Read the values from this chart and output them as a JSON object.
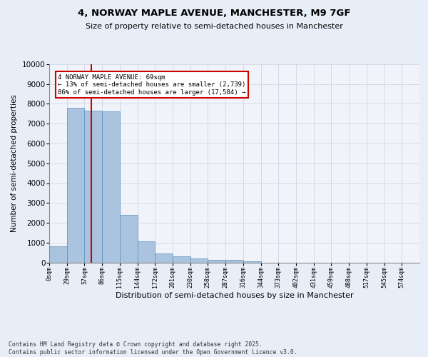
{
  "title1": "4, NORWAY MAPLE AVENUE, MANCHESTER, M9 7GF",
  "title2": "Size of property relative to semi-detached houses in Manchester",
  "xlabel": "Distribution of semi-detached houses by size in Manchester",
  "ylabel": "Number of semi-detached properties",
  "bin_labels": [
    "0sqm",
    "29sqm",
    "57sqm",
    "86sqm",
    "115sqm",
    "144sqm",
    "172sqm",
    "201sqm",
    "230sqm",
    "258sqm",
    "287sqm",
    "316sqm",
    "344sqm",
    "373sqm",
    "402sqm",
    "431sqm",
    "459sqm",
    "488sqm",
    "517sqm",
    "545sqm",
    "574sqm"
  ],
  "bar_values": [
    800,
    7800,
    7650,
    7620,
    2380,
    1060,
    460,
    300,
    185,
    120,
    120,
    60,
    0,
    0,
    0,
    0,
    0,
    0,
    0,
    0,
    0
  ],
  "bar_color": "#aac4e0",
  "bar_edge_color": "#5b8fbb",
  "property_bin_index": 2.4,
  "property_line_color": "#cc0000",
  "annotation_text": "4 NORWAY MAPLE AVENUE: 69sqm\n← 13% of semi-detached houses are smaller (2,739)\n86% of semi-detached houses are larger (17,584) →",
  "annotation_box_color": "#cc0000",
  "ylim": [
    0,
    10000
  ],
  "yticks": [
    0,
    1000,
    2000,
    3000,
    4000,
    5000,
    6000,
    7000,
    8000,
    9000,
    10000
  ],
  "footer": "Contains HM Land Registry data © Crown copyright and database right 2025.\nContains public sector information licensed under the Open Government Licence v3.0.",
  "bg_color": "#e8eef8",
  "plot_bg_color": "#f0f4fa",
  "grid_color": "#c8d0dc"
}
